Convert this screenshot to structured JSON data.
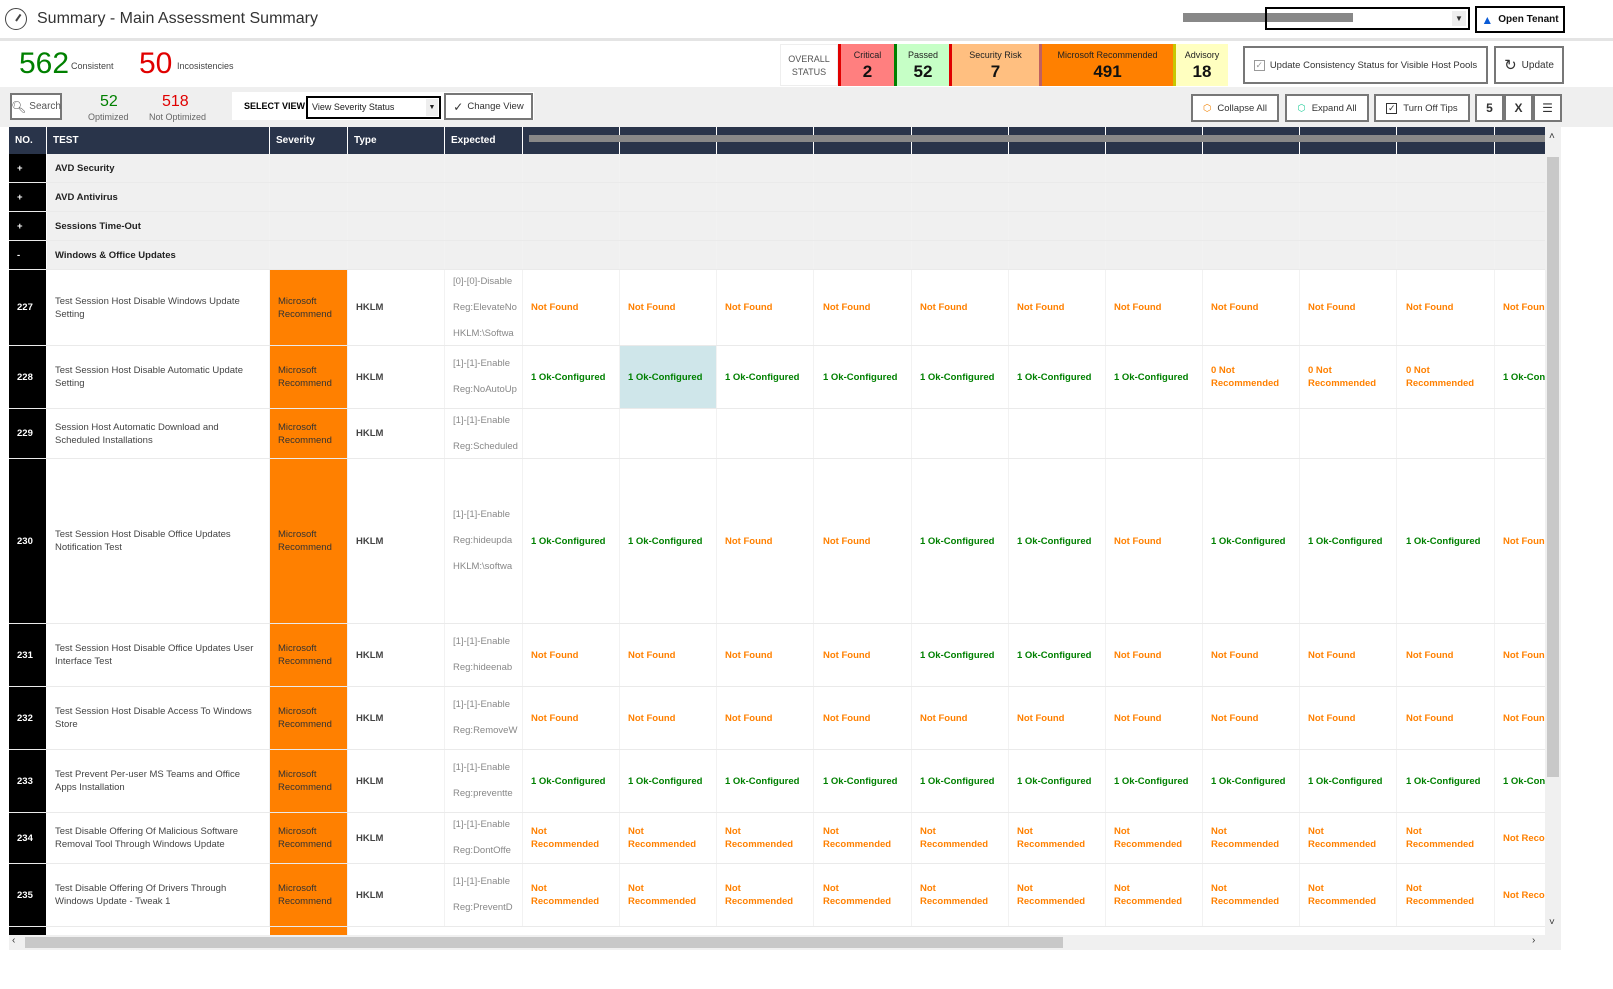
{
  "window": {
    "title": "Summary - Main Assessment Summary",
    "icon": "speedometer-icon"
  },
  "tenant": {
    "selected": "",
    "open_label": "Open Tenant"
  },
  "summary": {
    "consistent": "562",
    "consistent_label": "Consistent",
    "inconsistencies": "50",
    "inconsistencies_label": "Incosistencies",
    "overall_label_1": "OVERALL",
    "overall_label_2": "STATUS",
    "statuses": [
      {
        "label": "Critical",
        "value": "2",
        "color": "#ff7f7f",
        "edge": "#e00000"
      },
      {
        "label": "Passed",
        "value": "52",
        "color": "#c6ffc6",
        "edge": "#008000"
      },
      {
        "label": "Security Risk",
        "value": "7",
        "color": "#ffbf80",
        "edge": "#e00000"
      },
      {
        "label": "Microsoft Recommended",
        "value": "491",
        "color": "#ff8000",
        "edge": "#c06060"
      },
      {
        "label": "Advisory",
        "value": "18",
        "color": "#ffffc0",
        "edge": "#c8c800"
      }
    ],
    "update_consistency_label": "Update Consistency Status for Visible Host Pools",
    "update_consistency_checked": true,
    "update_label": "Update"
  },
  "toolbar": {
    "search_label": "Search",
    "optimized": "52",
    "optimized_label": "Optimized",
    "not_optimized": "518",
    "not_optimized_label": "Not Optimized",
    "select_view_label": "SELECT VIEW",
    "view_value": "View Severity Status",
    "change_view_label": "Change View",
    "collapse_all_label": "Collapse All",
    "expand_all_label": "Expand All",
    "turn_off_tips_label": "Turn Off Tips"
  },
  "table": {
    "columns": [
      "NO.",
      "TEST",
      "Severity",
      "Type",
      "Expected"
    ],
    "groups": [
      {
        "toggle": "+",
        "name": "AVD Security"
      },
      {
        "toggle": "+",
        "name": "AVD Antivirus"
      },
      {
        "toggle": "+",
        "name": "Sessions Time-Out"
      },
      {
        "toggle": "-",
        "name": "Windows & Office Updates"
      }
    ],
    "rows": [
      {
        "no": "227",
        "test": "Test Session Host Disable Windows Update Setting",
        "severity": "Microsoft Recommend",
        "type": "HKLM",
        "expected": [
          "[0]-[0]-Disable",
          "Reg:ElevateNo",
          "HKLM:\\Softwa"
        ],
        "results": [
          "Not Found",
          "Not Found",
          "Not Found",
          "Not Found",
          "Not Found",
          "Not Found",
          "Not Found",
          "Not Found",
          "Not Found",
          "Not Found",
          "Not Foun"
        ]
      },
      {
        "no": "228",
        "test": "Test Session Host Disable Automatic Update Setting",
        "severity": "Microsoft Recommend",
        "type": "HKLM",
        "expected": [
          "[1]-[1]-Enable",
          "Reg:NoAutoUp"
        ],
        "results": [
          "1 Ok-Configured",
          "1 Ok-Configured",
          "1 Ok-Configured",
          "1 Ok-Configured",
          "1 Ok-Configured",
          "1 Ok-Configured",
          "1 Ok-Configured",
          "0 Not Recommended",
          "0 Not Recommended",
          "0 Not Recommended",
          "1 Ok-Con"
        ],
        "highlight": 1
      },
      {
        "no": "229",
        "test": "Session Host Automatic Download and Scheduled Installations",
        "severity": "Microsoft Recommend",
        "type": "HKLM",
        "expected": [
          "[1]-[1]-Enable",
          "Reg:Scheduled"
        ],
        "results": [
          "",
          "",
          "",
          "",
          "",
          "",
          "",
          "",
          "",
          "",
          ""
        ]
      },
      {
        "no": "230",
        "test": "Test Session Host Disable Office Updates Notification Test",
        "severity": "Microsoft Recommend",
        "type": "HKLM",
        "expected": [
          "[1]-[1]-Enable",
          "Reg:hideupda",
          "HKLM:\\softwa"
        ],
        "results": [
          "1 Ok-Configured",
          "1 Ok-Configured",
          "Not Found",
          "Not Found",
          "1 Ok-Configured",
          "1 Ok-Configured",
          "Not Found",
          "1 Ok-Configured",
          "1 Ok-Configured",
          "1 Ok-Configured",
          "Not Foun"
        ]
      },
      {
        "no": "231",
        "test": "Test Session Host Disable Office Updates User Interface Test",
        "severity": "Microsoft Recommend",
        "type": "HKLM",
        "expected": [
          "[1]-[1]-Enable",
          "Reg:hideenab"
        ],
        "results": [
          "Not Found",
          "Not Found",
          "Not Found",
          "Not Found",
          "1 Ok-Configured",
          "1 Ok-Configured",
          "Not Found",
          "Not Found",
          "Not Found",
          "Not Found",
          "Not Foun"
        ]
      },
      {
        "no": "232",
        "test": "Test Session Host Disable Access To Windows Store",
        "severity": "Microsoft Recommend",
        "type": "HKLM",
        "expected": [
          "[1]-[1]-Enable",
          "Reg:RemoveW"
        ],
        "results": [
          "Not Found",
          "Not Found",
          "Not Found",
          "Not Found",
          "Not Found",
          "Not Found",
          "Not Found",
          "Not Found",
          "Not Found",
          "Not Found",
          "Not Foun"
        ]
      },
      {
        "no": "233",
        "test": "Test Prevent Per-user MS Teams and Office Apps Installation",
        "severity": "Microsoft Recommend",
        "type": "HKLM",
        "expected": [
          "[1]-[1]-Enable",
          "Reg:preventte"
        ],
        "results": [
          "1 Ok-Configured",
          "1 Ok-Configured",
          "1 Ok-Configured",
          "1 Ok-Configured",
          "1 Ok-Configured",
          "1 Ok-Configured",
          "1 Ok-Configured",
          "1 Ok-Configured",
          "1 Ok-Configured",
          "1 Ok-Configured",
          "1 Ok-Con"
        ]
      },
      {
        "no": "234",
        "test": "Test Disable Offering Of Malicious Software Removal Tool Through Windows Update",
        "severity": "Microsoft Recommend",
        "type": "HKLM",
        "expected": [
          "[1]-[1]-Enable",
          "Reg:DontOffe"
        ],
        "results": [
          "Not Recommended",
          "Not Recommended",
          "Not Recommended",
          "Not Recommended",
          "Not Recommended",
          "Not Recommended",
          "Not Recommended",
          "Not Recommended",
          "Not Recommended",
          "Not Recommended",
          "Not Recomm"
        ]
      },
      {
        "no": "235",
        "test": "Test Disable Offering Of Drivers Through Windows Update - Tweak 1",
        "severity": "Microsoft Recommend",
        "type": "HKLM",
        "expected": [
          "[1]-[1]-Enable",
          "Reg:PreventD"
        ],
        "results": [
          "Not Recommended",
          "Not Recommended",
          "Not Recommended",
          "Not Recommended",
          "Not Recommended",
          "Not Recommended",
          "Not Recommended",
          "Not Recommended",
          "Not Recommended",
          "Not Recommended",
          "Not Recomm"
        ]
      }
    ]
  },
  "colors": {
    "header": "#29344a",
    "ok": "#008000",
    "warn": "#ff8000",
    "severity_ms": "#ff8000",
    "highlight": "#cfe6ea"
  }
}
